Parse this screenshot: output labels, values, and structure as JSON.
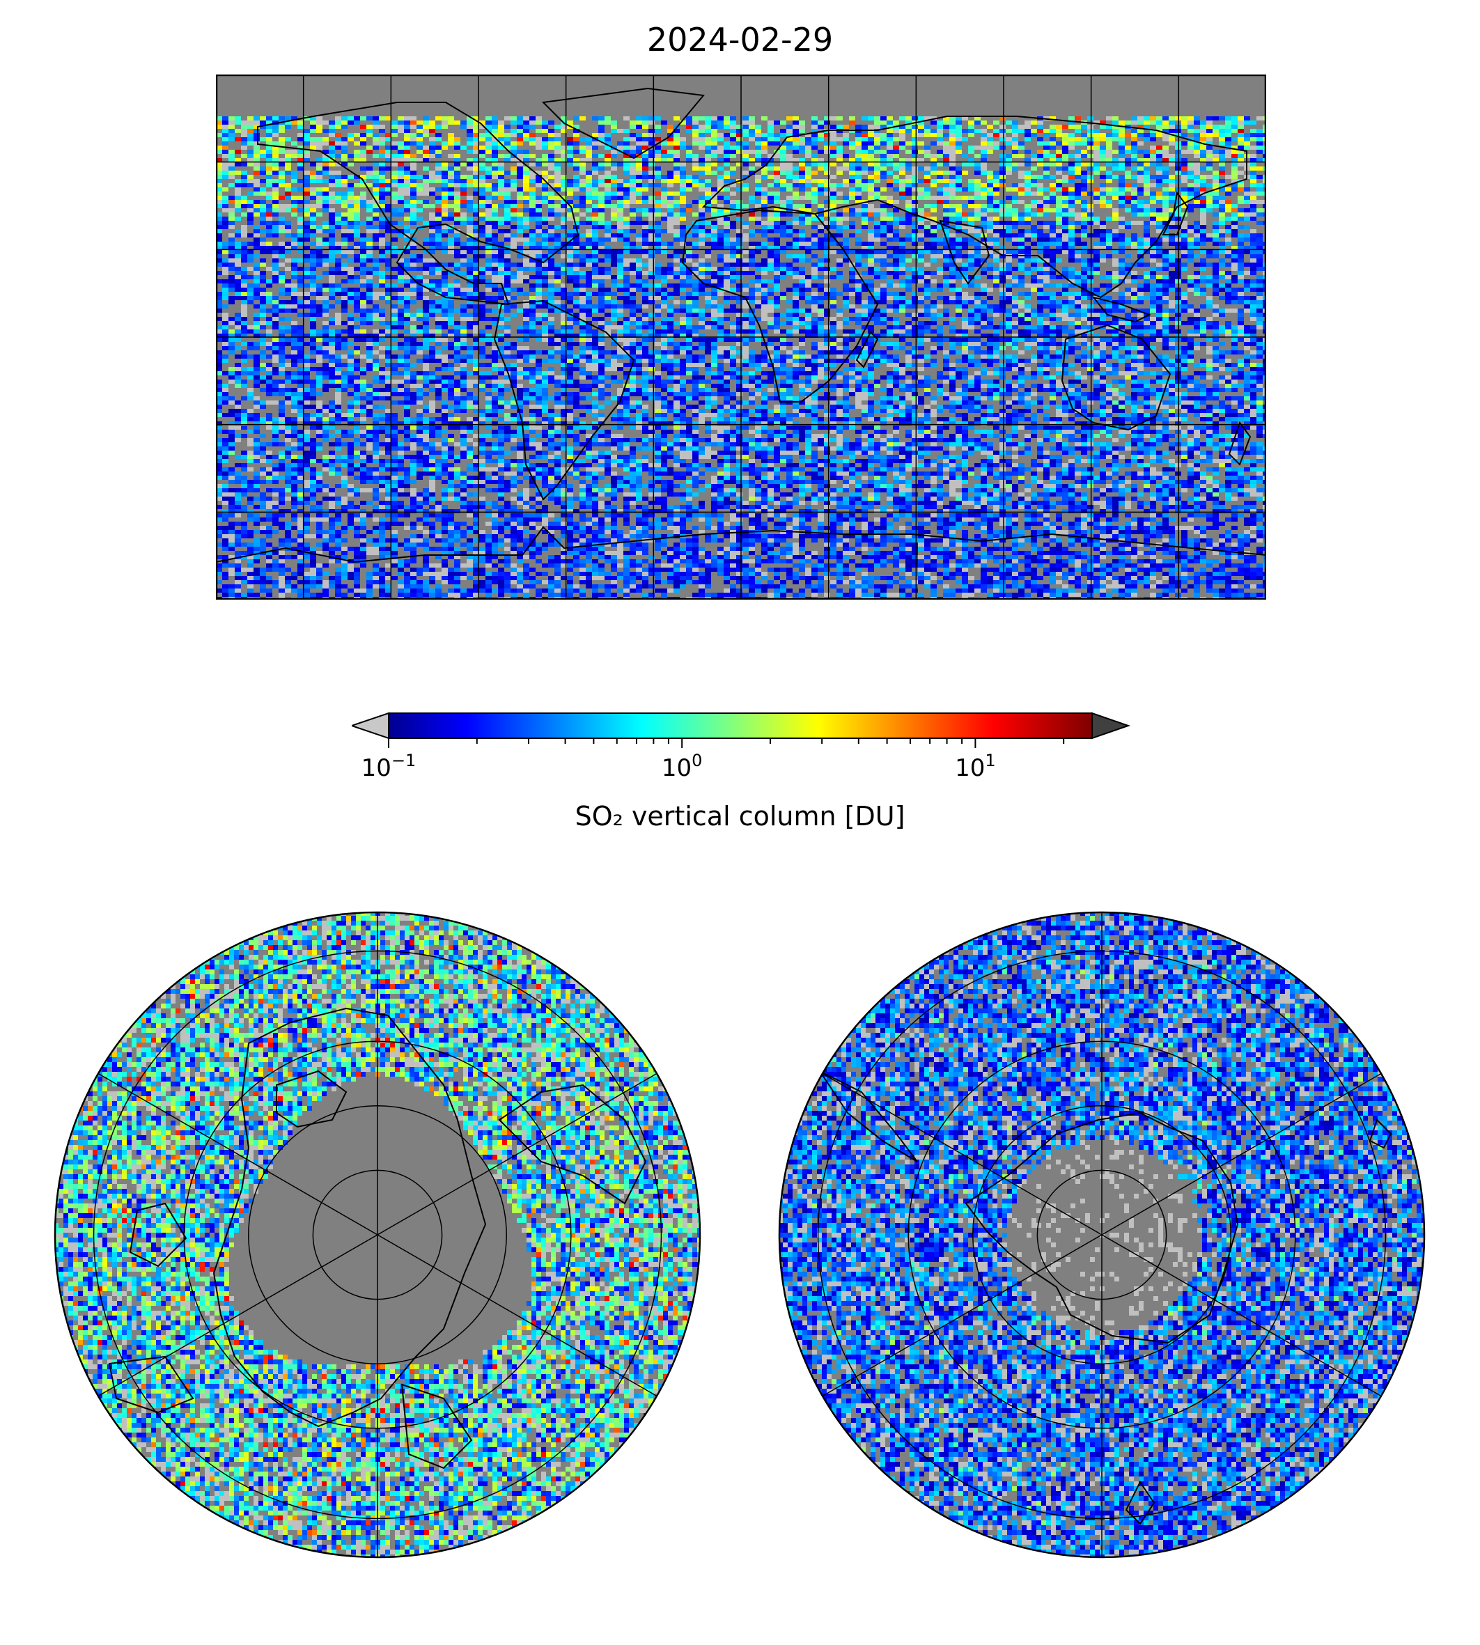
{
  "title": "2024-02-29",
  "colorbar": {
    "label": "SO₂ vertical column [DU]",
    "scale": "log",
    "range": [
      0.1,
      25
    ],
    "ticks": [
      {
        "base": "10",
        "exp": "−1",
        "value": 0.1
      },
      {
        "base": "10",
        "exp": "0",
        "value": 1
      },
      {
        "base": "10",
        "exp": "1",
        "value": 10
      }
    ],
    "colormap": "jet",
    "under_color": "#c8c8c8",
    "over_color": "#404040"
  },
  "colors": {
    "background_gray": "#808080",
    "light_gray": "#c0c0c0",
    "coast": "#000000"
  },
  "maps": [
    {
      "name": "global",
      "projection": "plate-carree",
      "gridlines": true
    },
    {
      "name": "north-polar",
      "projection": "north-polar-stereographic",
      "gridlines": true
    },
    {
      "name": "south-polar",
      "projection": "south-polar-stereographic",
      "gridlines": true
    }
  ]
}
